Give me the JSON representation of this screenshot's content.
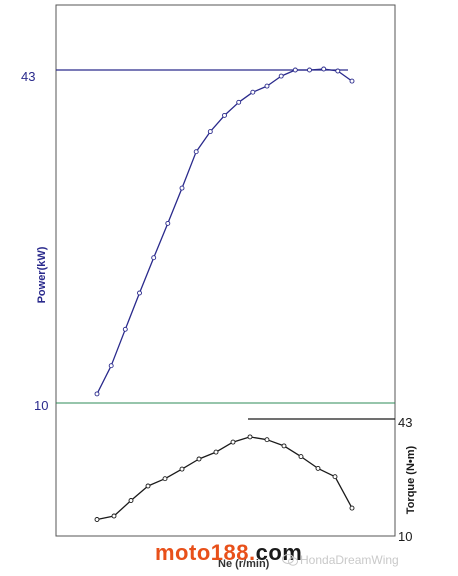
{
  "chart_data": [
    {
      "type": "line",
      "panel": "power",
      "ylabel": "Power(kW)",
      "y_ticks": [
        10,
        43
      ],
      "ylim": [
        10,
        43
      ],
      "reference_line": 43,
      "line_color": "#2a2a8c",
      "series": [
        {
          "x": [
            1,
            2,
            3,
            4,
            5,
            6,
            7,
            8,
            9,
            10,
            11,
            12,
            13,
            14,
            15,
            16,
            17,
            18,
            19
          ],
          "values": [
            10.9,
            13.7,
            17.3,
            20.9,
            24.4,
            27.8,
            31.3,
            34.9,
            36.9,
            38.5,
            39.8,
            40.8,
            41.4,
            42.4,
            43.0,
            43.0,
            43.1,
            42.9,
            41.9
          ]
        }
      ]
    },
    {
      "type": "line",
      "panel": "torque",
      "ylabel": "Torque (N•m)",
      "y_ticks": [
        10,
        43
      ],
      "ylim": [
        10,
        43
      ],
      "reference_line": 43,
      "line_color": "#1a1a1a",
      "series": [
        {
          "x": [
            1,
            2,
            3,
            4,
            5,
            6,
            7,
            8,
            9,
            10,
            11,
            12,
            13,
            14,
            15,
            16
          ],
          "values": [
            14.2,
            15.2,
            19.7,
            23.9,
            26.0,
            28.8,
            31.7,
            33.7,
            36.6,
            38.1,
            37.3,
            35.5,
            32.4,
            29.0,
            26.6,
            17.5
          ]
        }
      ]
    }
  ],
  "xlabel": "Ne (r/min)",
  "watermark": {
    "brand": "moto188",
    "dot": ".",
    "tld": "com",
    "credit": "HondaDreamWing"
  }
}
